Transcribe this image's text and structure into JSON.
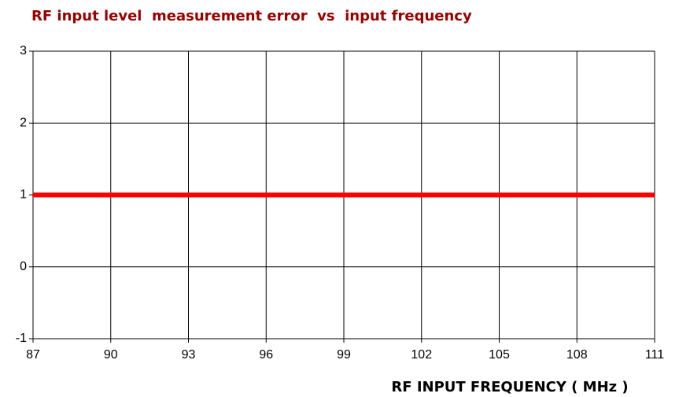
{
  "chart_data": {
    "type": "line",
    "title": "RF input level  measurement error  vs  input frequency",
    "x_label": "RF INPUT FREQUENCY ( MHz )",
    "x": [
      87,
      111
    ],
    "series": [
      {
        "color": "#ff0000",
        "values": [
          1,
          1
        ]
      }
    ],
    "xlim": [
      87,
      111
    ],
    "xticks": [
      87,
      90,
      93,
      96,
      99,
      102,
      105,
      108,
      111
    ],
    "ylim": [
      -1,
      3
    ],
    "yticks": [
      -1,
      0,
      1,
      2,
      3
    ],
    "grid": true
  }
}
